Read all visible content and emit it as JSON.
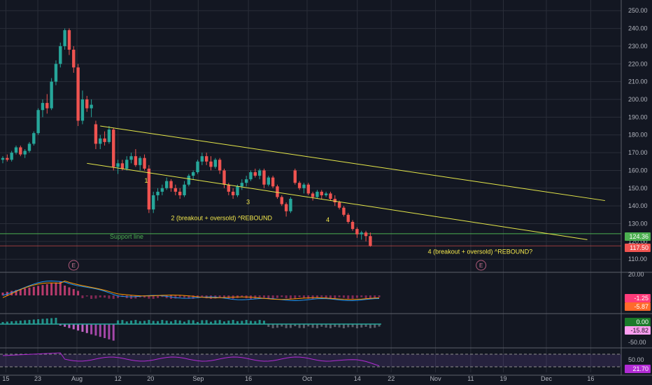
{
  "chart_data": {
    "type": "candlestick",
    "price_axis": {
      "range": [
        103,
        256
      ],
      "ticks": [
        "250.00",
        "240.00",
        "230.00",
        "220.00",
        "210.00",
        "200.00",
        "190.00",
        "180.00",
        "170.00",
        "160.00",
        "150.00",
        "140.00",
        "130.00",
        "120.00",
        "110.00"
      ]
    },
    "time_axis": {
      "labels": [
        "15",
        "23",
        "Aug",
        "12",
        "20",
        "Sep",
        "16",
        "Oct",
        "14",
        "22",
        "Nov",
        "11",
        "19",
        "Dec",
        "16"
      ],
      "label_x_fraction": [
        0.009,
        0.058,
        0.118,
        0.181,
        0.231,
        0.304,
        0.381,
        0.471,
        0.548,
        0.6,
        0.668,
        0.722,
        0.772,
        0.838,
        0.906
      ]
    },
    "candles": [
      {
        "o": 166,
        "h": 168,
        "l": 164,
        "c": 167
      },
      {
        "o": 167,
        "h": 169,
        "l": 165,
        "c": 166
      },
      {
        "o": 166,
        "h": 171,
        "l": 165,
        "c": 170
      },
      {
        "o": 170,
        "h": 174,
        "l": 169,
        "c": 173
      },
      {
        "o": 173,
        "h": 174,
        "l": 168,
        "c": 169
      },
      {
        "o": 169,
        "h": 172,
        "l": 167,
        "c": 171
      },
      {
        "o": 171,
        "h": 176,
        "l": 170,
        "c": 175
      },
      {
        "o": 175,
        "h": 182,
        "l": 174,
        "c": 181
      },
      {
        "o": 181,
        "h": 195,
        "l": 180,
        "c": 194
      },
      {
        "o": 194,
        "h": 200,
        "l": 190,
        "c": 198
      },
      {
        "o": 198,
        "h": 203,
        "l": 192,
        "c": 195
      },
      {
        "o": 195,
        "h": 212,
        "l": 194,
        "c": 210
      },
      {
        "o": 210,
        "h": 222,
        "l": 208,
        "c": 220
      },
      {
        "o": 220,
        "h": 232,
        "l": 218,
        "c": 230
      },
      {
        "o": 230,
        "h": 240,
        "l": 228,
        "c": 239
      },
      {
        "o": 239,
        "h": 240,
        "l": 225,
        "c": 228
      },
      {
        "o": 228,
        "h": 230,
        "l": 215,
        "c": 218
      },
      {
        "o": 218,
        "h": 220,
        "l": 185,
        "c": 188
      },
      {
        "o": 188,
        "h": 205,
        "l": 186,
        "c": 200
      },
      {
        "o": 200,
        "h": 202,
        "l": 193,
        "c": 195
      },
      {
        "o": 195,
        "h": 200,
        "l": 190,
        "c": 197
      },
      {
        "o": 186,
        "h": 188,
        "l": 172,
        "c": 175
      },
      {
        "o": 175,
        "h": 180,
        "l": 172,
        "c": 178
      },
      {
        "o": 178,
        "h": 182,
        "l": 174,
        "c": 176
      },
      {
        "o": 176,
        "h": 185,
        "l": 175,
        "c": 183
      },
      {
        "o": 183,
        "h": 184,
        "l": 160,
        "c": 162
      },
      {
        "o": 162,
        "h": 166,
        "l": 158,
        "c": 164
      },
      {
        "o": 164,
        "h": 166,
        "l": 160,
        "c": 161
      },
      {
        "o": 161,
        "h": 168,
        "l": 160,
        "c": 166
      },
      {
        "o": 166,
        "h": 170,
        "l": 164,
        "c": 168
      },
      {
        "o": 168,
        "h": 172,
        "l": 162,
        "c": 163
      },
      {
        "o": 163,
        "h": 168,
        "l": 160,
        "c": 167
      },
      {
        "o": 167,
        "h": 169,
        "l": 160,
        "c": 161
      },
      {
        "o": 161,
        "h": 163,
        "l": 136,
        "c": 138
      },
      {
        "o": 138,
        "h": 148,
        "l": 136,
        "c": 146
      },
      {
        "o": 146,
        "h": 150,
        "l": 143,
        "c": 148
      },
      {
        "o": 148,
        "h": 152,
        "l": 146,
        "c": 150
      },
      {
        "o": 150,
        "h": 156,
        "l": 149,
        "c": 154
      },
      {
        "o": 154,
        "h": 155,
        "l": 148,
        "c": 150
      },
      {
        "o": 150,
        "h": 152,
        "l": 146,
        "c": 148
      },
      {
        "o": 148,
        "h": 150,
        "l": 144,
        "c": 146
      },
      {
        "o": 146,
        "h": 154,
        "l": 145,
        "c": 152
      },
      {
        "o": 152,
        "h": 158,
        "l": 151,
        "c": 157
      },
      {
        "o": 157,
        "h": 160,
        "l": 155,
        "c": 159
      },
      {
        "o": 159,
        "h": 166,
        "l": 158,
        "c": 165
      },
      {
        "o": 165,
        "h": 170,
        "l": 163,
        "c": 168
      },
      {
        "o": 168,
        "h": 170,
        "l": 163,
        "c": 165
      },
      {
        "o": 165,
        "h": 168,
        "l": 160,
        "c": 162
      },
      {
        "o": 162,
        "h": 167,
        "l": 161,
        "c": 166
      },
      {
        "o": 166,
        "h": 167,
        "l": 158,
        "c": 160
      },
      {
        "o": 160,
        "h": 161,
        "l": 150,
        "c": 152
      },
      {
        "o": 152,
        "h": 153,
        "l": 146,
        "c": 148
      },
      {
        "o": 148,
        "h": 150,
        "l": 144,
        "c": 146
      },
      {
        "o": 146,
        "h": 152,
        "l": 145,
        "c": 151
      },
      {
        "o": 151,
        "h": 155,
        "l": 149,
        "c": 153
      },
      {
        "o": 153,
        "h": 157,
        "l": 151,
        "c": 155
      },
      {
        "o": 155,
        "h": 160,
        "l": 154,
        "c": 159
      },
      {
        "o": 159,
        "h": 161,
        "l": 156,
        "c": 157
      },
      {
        "o": 157,
        "h": 161,
        "l": 155,
        "c": 160
      },
      {
        "o": 160,
        "h": 161,
        "l": 150,
        "c": 152
      },
      {
        "o": 152,
        "h": 157,
        "l": 151,
        "c": 156
      },
      {
        "o": 156,
        "h": 157,
        "l": 150,
        "c": 151
      },
      {
        "o": 151,
        "h": 152,
        "l": 144,
        "c": 145
      },
      {
        "o": 145,
        "h": 146,
        "l": 140,
        "c": 141
      },
      {
        "o": 141,
        "h": 142,
        "l": 134,
        "c": 137
      },
      {
        "o": 137,
        "h": 145,
        "l": 136,
        "c": 144
      },
      {
        "o": 160,
        "h": 161,
        "l": 152,
        "c": 153
      },
      {
        "o": 153,
        "h": 154,
        "l": 149,
        "c": 150
      },
      {
        "o": 150,
        "h": 153,
        "l": 147,
        "c": 152
      },
      {
        "o": 152,
        "h": 153,
        "l": 146,
        "c": 147
      },
      {
        "o": 147,
        "h": 148,
        "l": 143,
        "c": 145
      },
      {
        "o": 145,
        "h": 149,
        "l": 144,
        "c": 148
      },
      {
        "o": 148,
        "h": 149,
        "l": 144,
        "c": 146
      },
      {
        "o": 146,
        "h": 148,
        "l": 145,
        "c": 147
      },
      {
        "o": 147,
        "h": 148,
        "l": 143,
        "c": 144
      },
      {
        "o": 144,
        "h": 146,
        "l": 140,
        "c": 142
      },
      {
        "o": 142,
        "h": 143,
        "l": 138,
        "c": 139
      },
      {
        "o": 139,
        "h": 140,
        "l": 134,
        "c": 135
      },
      {
        "o": 135,
        "h": 136,
        "l": 130,
        "c": 131
      },
      {
        "o": 131,
        "h": 132,
        "l": 126,
        "c": 127
      },
      {
        "o": 127,
        "h": 128,
        "l": 122,
        "c": 124
      },
      {
        "o": 124,
        "h": 126,
        "l": 121,
        "c": 125
      },
      {
        "o": 125,
        "h": 126,
        "l": 120,
        "c": 123
      },
      {
        "o": 123,
        "h": 125,
        "l": 117,
        "c": 117.5
      }
    ],
    "trendlines": [
      {
        "name": "upper-trendline",
        "from": {
          "i": 22,
          "p": 185
        },
        "to": {
          "i": 136,
          "p": 143
        },
        "color": "#e6e84a"
      },
      {
        "name": "lower-trendline",
        "from": {
          "i": 19,
          "p": 164
        },
        "to": {
          "i": 132,
          "p": 121
        },
        "color": "#e6e84a"
      }
    ],
    "support": {
      "label": "Support line",
      "price": 124.36,
      "color": "#4caf50"
    },
    "annotations": [
      {
        "text": "1",
        "i": 32,
        "p": 153
      },
      {
        "text": "2 (breakout + oversold) ^REBOUND",
        "i": 38,
        "p": 132
      },
      {
        "text": "3",
        "i": 55,
        "p": 141
      },
      {
        "text": "4",
        "i": 73,
        "p": 131
      },
      {
        "text": "4 (breakout + oversold) ^REBOUND?",
        "i": 96,
        "p": 113
      }
    ],
    "earnings_markers": [
      {
        "label": "E",
        "i": 16
      },
      {
        "label": "E",
        "i": 108
      }
    ],
    "price_badges": [
      {
        "text": "124.36",
        "price": 124.36,
        "bg": "#4caf50",
        "fg": "#ffffff"
      },
      {
        "text": "117.50",
        "price": 117.5,
        "bg": "#ef5350",
        "fg": "#ffffff"
      }
    ],
    "macd": {
      "axis_label": "20.00",
      "badges": [
        {
          "text": "-1.25",
          "bg": "#ff3b7a"
        },
        {
          "text": "-5.87",
          "bg": "#ff6a2b"
        }
      ]
    },
    "momentum": {
      "axis_labels": [
        "0.00",
        "-50.00"
      ],
      "badges": [
        {
          "text": "0.00",
          "bg": "#1b7a2a"
        },
        {
          "text": "-15.82",
          "bg": "#ff9ef0"
        }
      ]
    },
    "rsi": {
      "axis_label": "50.00",
      "badges": [
        {
          "text": "21.70",
          "bg": "#b12bd4"
        }
      ]
    },
    "colors": {
      "up": "#26a69a",
      "down": "#ef5350",
      "bg": "#131722",
      "grid": "#2a2e39",
      "axis_text": "#b2b5be",
      "text_yellow": "#f5e94c"
    }
  }
}
